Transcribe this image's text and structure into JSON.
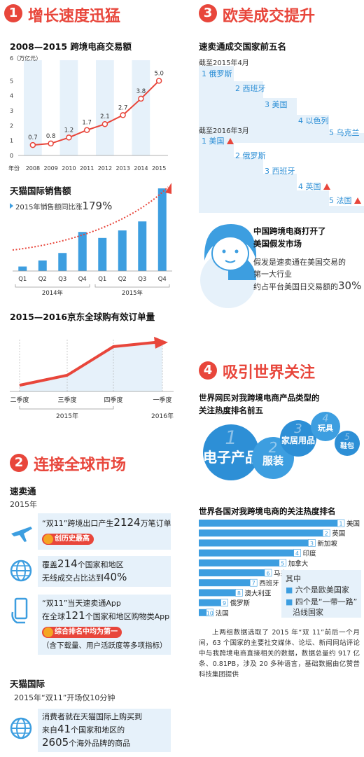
{
  "sections": {
    "s1": {
      "num": "1",
      "title": "增长速度迅猛"
    },
    "s2": {
      "num": "2",
      "title": "连接全球市场"
    },
    "s3": {
      "num": "3",
      "title": "欧美成交提升"
    },
    "s4": {
      "num": "4",
      "title": "吸引世界关注"
    }
  },
  "colors": {
    "accent": "#e8463b",
    "blue": "#2d8fd6",
    "light_blue": "#e6f1fa",
    "bar_blue": "#3d9ee0"
  },
  "chart_data": [
    {
      "type": "line",
      "title": "2008—2015 跨境电商交易额",
      "ylabel": "6（万亿元）",
      "xlabel": "年份",
      "x": [
        "2008",
        "2009",
        "2010",
        "2011",
        "2012",
        "2013",
        "2014",
        "2015"
      ],
      "values": [
        0.7,
        0.8,
        1.2,
        1.7,
        2.1,
        2.7,
        3.8,
        5.0
      ],
      "labels": [
        "0.7",
        "0.8",
        "1.2",
        "1.7",
        "2.1",
        "2.7",
        "3.8",
        "5.0"
      ],
      "yticks": [
        "6",
        "5",
        "4",
        "3",
        "2",
        "1",
        "0"
      ],
      "ylim": [
        0,
        6
      ]
    },
    {
      "type": "bar",
      "title": "天猫国际销售额",
      "annotation_prefix": "2015年销售额同比涨",
      "annotation_value": "179%",
      "categories": [
        "Q1",
        "Q2",
        "Q3",
        "Q4",
        "Q1",
        "Q2",
        "Q3",
        "Q4"
      ],
      "values": [
        0.3,
        0.7,
        1.2,
        2.6,
        2.2,
        2.7,
        3.3,
        5.5
      ],
      "groups": [
        "2014年",
        "2015年"
      ]
    },
    {
      "type": "line",
      "title": "2015—2016京东全球购有效订单量",
      "categories": [
        "二季度",
        "三季度",
        "四季度",
        "一季度"
      ],
      "values": [
        0.5,
        1.3,
        3.6,
        4.0
      ],
      "groups": [
        "2015年",
        "2016年"
      ]
    }
  ],
  "s2": {
    "sumaitong": "速卖通",
    "year": "2015年",
    "item1_line1_a": "“双11”跨境出口产生",
    "item1_line1_b": "2124",
    "item1_line1_c": "万笔订单",
    "item1_badge": "创历史最高",
    "item2_line1_a": "覆盖",
    "item2_line1_b": "214",
    "item2_line1_c": "个国家和地区",
    "item2_line2_a": "无线成交占比达到",
    "item2_line2_b": "40%",
    "item3_line1": "“双11”当天速卖通App",
    "item3_line2_a": "在全球",
    "item3_line2_b": "121",
    "item3_line2_c": "个国家和地区购物类App",
    "item3_badge": "综合排名中均为第一",
    "item3_note": "（含下载量、用户活跃度等多项指标）",
    "tmall": "天猫国际",
    "tmall_sub": "2015年“双11”开场仅10分钟",
    "item4_line1": "消费者就在天猫国际上购买到",
    "item4_line2_a": "来自",
    "item4_line2_b": "41",
    "item4_line2_c": "个国家和地区的",
    "item4_line3_a": "2605",
    "item4_line3_b": "个海外品牌的商品"
  },
  "s3": {
    "subtitle": "速卖通成交国家前五名",
    "period1": "截至2015年4月",
    "list1": [
      "1 俄罗斯",
      "2 西班牙",
      "3 美国",
      "4 以色列",
      "5 乌克兰"
    ],
    "period2": "截至2016年3月",
    "list2": [
      "1 美国",
      "2 俄罗斯",
      "3 西班牙",
      "4 英国",
      "5 法国"
    ],
    "fake_title_1": "中国跨境电商打开了",
    "fake_title_2": "美国假发市场",
    "fake_desc_1": "假发是速卖通在美国交易的",
    "fake_desc_2": "第一大行业",
    "fake_desc_3": "约占平台美国日交易额的",
    "fake_pct": "30%"
  },
  "s4": {
    "bubble_title_1": "世界网民对我跨境电商产品类型的",
    "bubble_title_2": "关注热度排名前五",
    "bubbles": [
      {
        "n": "1",
        "label": "电子产品"
      },
      {
        "n": "2",
        "label": "服装"
      },
      {
        "n": "3",
        "label": "家居用品"
      },
      {
        "n": "4",
        "label": "玩具"
      },
      {
        "n": "5",
        "label": "鞋包"
      }
    ],
    "rank_title": "世界各国对我跨境电商的关注热度排名",
    "ranks": [
      {
        "n": "1",
        "name": "美国",
        "v": 10
      },
      {
        "n": "2",
        "name": "英国",
        "v": 9
      },
      {
        "n": "3",
        "name": "新加坡",
        "v": 8
      },
      {
        "n": "4",
        "name": "印度",
        "v": 7
      },
      {
        "n": "5",
        "name": "加拿大",
        "v": 6
      },
      {
        "n": "6",
        "name": "马来西亚",
        "v": 5
      },
      {
        "n": "7",
        "name": "西班牙",
        "v": 4
      },
      {
        "n": "8",
        "name": "澳大利亚",
        "v": 3
      },
      {
        "n": "9",
        "name": "俄罗斯",
        "v": 2
      },
      {
        "n": "10",
        "name": "法国",
        "v": 1
      }
    ],
    "legend_title": "其中",
    "legend_1": "六个是欧美国家",
    "legend_2a": "四个是“一带一路”",
    "legend_2b": "沿线国家",
    "note": "上两组数据选取了 2015 年“双 11”前后一个月间，63 个国家的主要社交媒体、论坛、新闻网站评论中与我跨境电商直接相关的数据，数据总量约 917 亿条、0.81PB，涉及 20 多种语言，基础数据由亿赞普科技集团提供"
  }
}
